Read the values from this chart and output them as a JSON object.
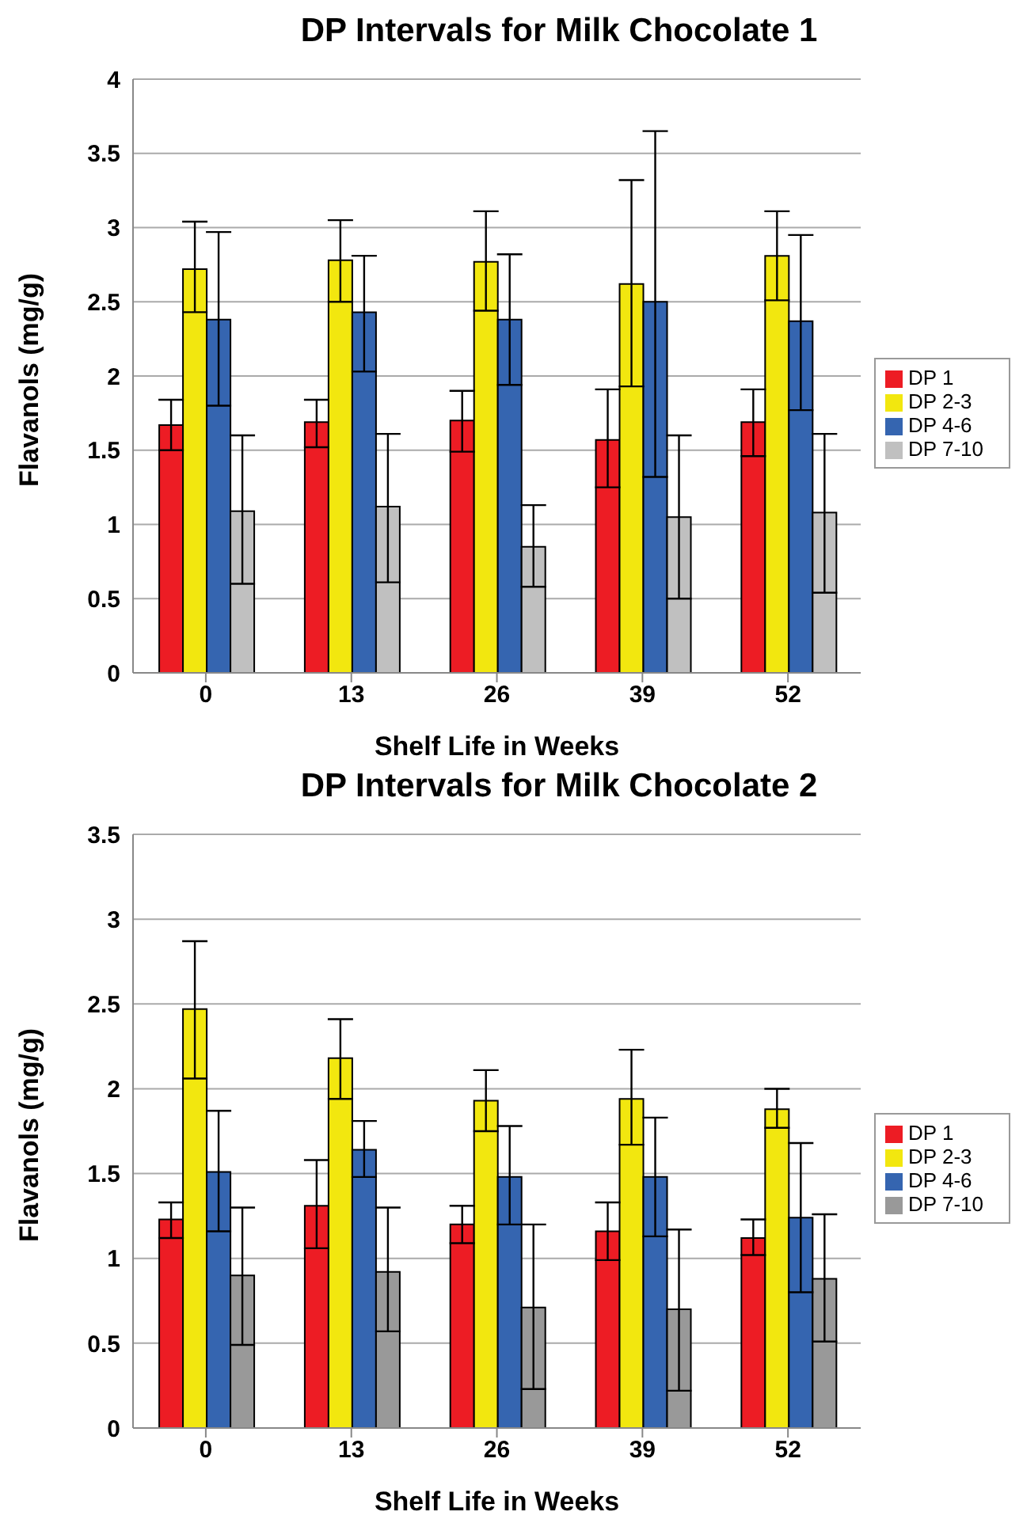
{
  "chart_data": [
    {
      "type": "bar",
      "title": "DP Intervals for Milk Chocolate 1",
      "xlabel": "Shelf Life in Weeks",
      "ylabel": "Flavanols (mg/g)",
      "categories": [
        "0",
        "13",
        "26",
        "39",
        "52"
      ],
      "series": [
        {
          "name": "DP 1",
          "color": "#ed1c24",
          "values": [
            1.67,
            1.69,
            1.7,
            1.57,
            1.69
          ],
          "errors": [
            [
              1.5,
              1.84
            ],
            [
              1.52,
              1.84
            ],
            [
              1.49,
              1.9
            ],
            [
              1.25,
              1.91
            ],
            [
              1.46,
              1.91
            ]
          ]
        },
        {
          "name": "DP 2-3",
          "color": "#f2e70f",
          "values": [
            2.72,
            2.78,
            2.77,
            2.62,
            2.81
          ],
          "errors": [
            [
              2.43,
              3.04
            ],
            [
              2.5,
              3.05
            ],
            [
              2.44,
              3.11
            ],
            [
              1.93,
              3.32
            ],
            [
              2.51,
              3.11
            ]
          ]
        },
        {
          "name": "DP 4-6",
          "color": "#3565b0",
          "values": [
            2.38,
            2.43,
            2.38,
            2.5,
            2.37
          ],
          "errors": [
            [
              1.8,
              2.97
            ],
            [
              2.03,
              2.81
            ],
            [
              1.94,
              2.82
            ],
            [
              1.32,
              3.65
            ],
            [
              1.77,
              2.95
            ]
          ]
        },
        {
          "name": "DP 7-10",
          "color": "#c0c0c0",
          "values": [
            1.09,
            1.12,
            0.85,
            1.05,
            1.08
          ],
          "errors": [
            [
              0.6,
              1.6
            ],
            [
              0.61,
              1.61
            ],
            [
              0.58,
              1.13
            ],
            [
              0.5,
              1.6
            ],
            [
              0.54,
              1.61
            ]
          ]
        }
      ],
      "ylim": [
        0,
        4
      ],
      "yticks": [
        0,
        0.5,
        1,
        1.5,
        2,
        2.5,
        3,
        3.5,
        4
      ],
      "grid": "y",
      "legend": "right"
    },
    {
      "type": "bar",
      "title": "DP Intervals for Milk Chocolate 2",
      "xlabel": "Shelf Life in Weeks",
      "ylabel": "Flavanols (mg/g)",
      "categories": [
        "0",
        "13",
        "26",
        "39",
        "52"
      ],
      "series": [
        {
          "name": "DP 1",
          "color": "#ed1c24",
          "values": [
            1.23,
            1.31,
            1.2,
            1.16,
            1.12
          ],
          "errors": [
            [
              1.12,
              1.33
            ],
            [
              1.06,
              1.58
            ],
            [
              1.09,
              1.31
            ],
            [
              0.99,
              1.33
            ],
            [
              1.02,
              1.23
            ]
          ]
        },
        {
          "name": "DP 2-3",
          "color": "#f2e70f",
          "values": [
            2.47,
            2.18,
            1.93,
            1.94,
            1.88
          ],
          "errors": [
            [
              2.06,
              2.87
            ],
            [
              1.94,
              2.41
            ],
            [
              1.75,
              2.11
            ],
            [
              1.67,
              2.23
            ],
            [
              1.77,
              2.0
            ]
          ]
        },
        {
          "name": "DP 4-6",
          "color": "#3565b0",
          "values": [
            1.51,
            1.64,
            1.48,
            1.48,
            1.24
          ],
          "errors": [
            [
              1.16,
              1.87
            ],
            [
              1.48,
              1.81
            ],
            [
              1.2,
              1.78
            ],
            [
              1.13,
              1.83
            ],
            [
              0.8,
              1.68
            ]
          ]
        },
        {
          "name": "DP 7-10",
          "color": "#999999",
          "values": [
            0.9,
            0.92,
            0.71,
            0.7,
            0.88
          ],
          "errors": [
            [
              0.49,
              1.3
            ],
            [
              0.57,
              1.3
            ],
            [
              0.23,
              1.2
            ],
            [
              0.22,
              1.17
            ],
            [
              0.51,
              1.26
            ]
          ]
        }
      ],
      "ylim": [
        0,
        3.5
      ],
      "yticks": [
        0,
        0.5,
        1,
        1.5,
        2,
        2.5,
        3,
        3.5
      ],
      "grid": "y",
      "legend": "right"
    }
  ]
}
